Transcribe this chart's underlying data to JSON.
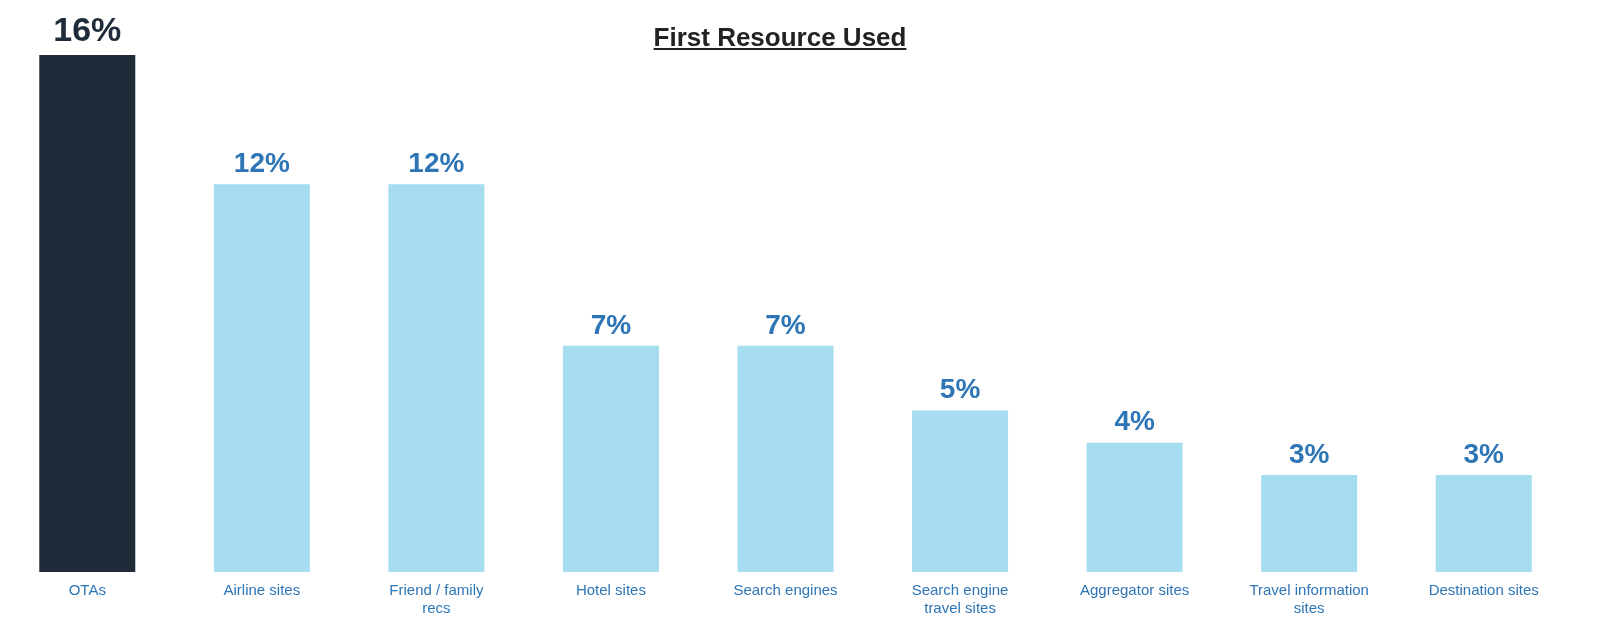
{
  "chart_data": {
    "type": "bar",
    "title": "First Resource Used",
    "categories": [
      "OTAs",
      "Airline sites",
      "Friend / family recs",
      "Hotel sites",
      "Search engines",
      "Search engine travel sites",
      "Aggregator sites",
      "Travel information sites",
      "Destination sites"
    ],
    "values": [
      16,
      12,
      12,
      7,
      7,
      5,
      4,
      3,
      3
    ],
    "colors": [
      "#1f2b38",
      "#a6dcf0",
      "#a6dcf0",
      "#a6dcf0",
      "#a6dcf0",
      "#a6dcf0",
      "#a6dcf0",
      "#a6dcf0",
      "#a6dcf0"
    ],
    "value_labels": [
      "16%",
      "12%",
      "12%",
      "7%",
      "7%",
      "5%",
      "4%",
      "3%",
      "3%"
    ],
    "grid": false,
    "legend": false
  }
}
